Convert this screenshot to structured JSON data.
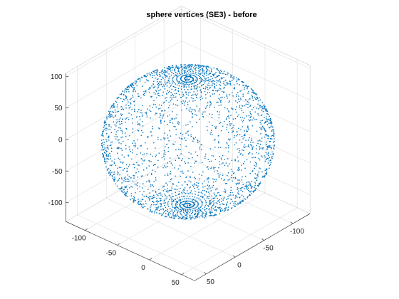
{
  "chart_data": {
    "type": "scatter",
    "title": "sphere vertices (SE3) - before",
    "xlabel": "",
    "ylabel": "",
    "zlabel": "",
    "grid": true,
    "xlim": [
      -130,
      70
    ],
    "ylim": [
      -130,
      70
    ],
    "zlim": [
      -130,
      105
    ],
    "x_ticks": [
      -100,
      -50,
      0,
      50
    ],
    "y_ticks": [
      -100,
      -50,
      0,
      50
    ],
    "z_ticks": [
      -100,
      -50,
      0,
      50,
      100
    ],
    "marker_color": "#0072BD",
    "sphere": {
      "center": [
        -30,
        -30,
        -10
      ],
      "radius": 100,
      "points_estimate": 2500,
      "spiral_poles": [
        "top",
        "bottom"
      ]
    }
  }
}
